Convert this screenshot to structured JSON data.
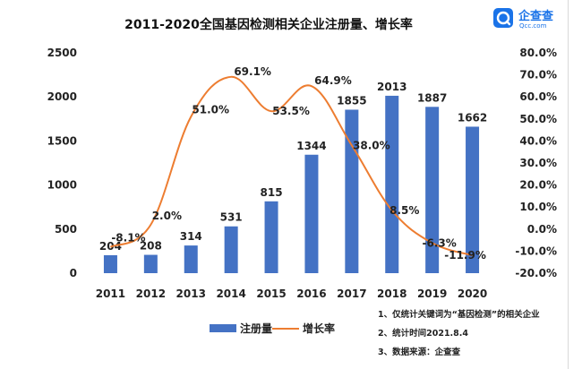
{
  "chart_data": {
    "type": "bar",
    "title": "2011-2020全国基因检测相关企业注册量、增长率",
    "categories": [
      "2011",
      "2012",
      "2013",
      "2014",
      "2015",
      "2016",
      "2017",
      "2018",
      "2019",
      "2020"
    ],
    "series": [
      {
        "name": "注册量",
        "type": "bar",
        "axis": "left",
        "color": "#4472c4",
        "values": [
          204,
          208,
          314,
          531,
          815,
          1344,
          1855,
          2013,
          1887,
          1662
        ],
        "labels": [
          "204",
          "208",
          "314",
          "531",
          "815",
          "1344",
          "1855",
          "2013",
          "1887",
          "1662"
        ]
      },
      {
        "name": "增长率",
        "type": "line",
        "axis": "right",
        "color": "#ed7d31",
        "values": [
          -8.1,
          2.0,
          51.0,
          69.1,
          53.5,
          64.9,
          38.0,
          8.5,
          -6.3,
          -11.9
        ],
        "labels": [
          "-8.1%",
          "2.0%",
          "51.0%",
          "69.1%",
          "53.5%",
          "64.9%",
          "38.0%",
          "8.5%",
          "-6.3%",
          "-11.9%"
        ]
      }
    ],
    "ylim_left": [
      0,
      2500
    ],
    "yticks_left": [
      "0",
      "500",
      "1000",
      "1500",
      "2000",
      "2500"
    ],
    "ylim_right": [
      -20,
      80
    ],
    "yticks_right": [
      "-20.0%",
      "-10.0%",
      "0.0%",
      "10.0%",
      "20.0%",
      "30.0%",
      "40.0%",
      "50.0%",
      "60.0%",
      "70.0%",
      "80.0%"
    ],
    "legend": {
      "position": "bottom-left"
    }
  },
  "notes": [
    "1、仅统计关键词为“基因检测”的相关企业",
    "2、统计时间2021.8.4",
    "3、数据来源：企查查"
  ],
  "brand": {
    "name": "企查查",
    "domain": "Qcc.com",
    "color": "#1a73e8"
  }
}
